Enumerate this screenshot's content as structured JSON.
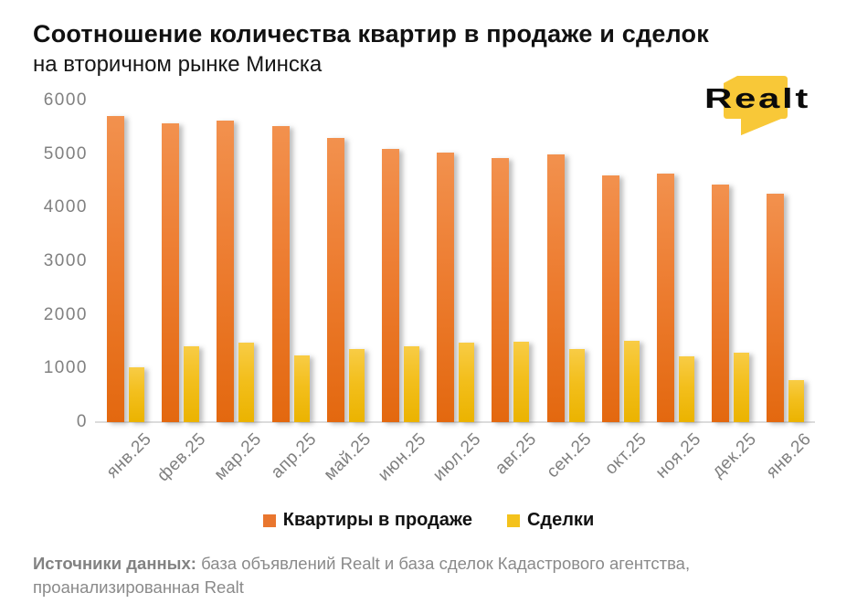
{
  "header": {
    "title": "Соотношение количества квартир в продаже и сделок",
    "subtitle": "на вторичном рынке Минска"
  },
  "logo": {
    "text": "Realt",
    "bubble_color": "#F8C838",
    "text_color": "#0b0b0b"
  },
  "chart_data": {
    "type": "bar",
    "title": "Соотношение количества квартир в продаже и сделок на вторичном рынке Минска",
    "categories": [
      "янв.25",
      "фев.25",
      "мар.25",
      "апр.25",
      "май.25",
      "июн.25",
      "июл.25",
      "авг.25",
      "сен.25",
      "окт.25",
      "ноя.25",
      "дек.25",
      "янв.26"
    ],
    "series": [
      {
        "name": "Квартиры в продаже",
        "color": "#ED7D31",
        "values": [
          5710,
          5580,
          5630,
          5520,
          5300,
          5090,
          5030,
          4920,
          4990,
          4600,
          4640,
          4430,
          4260
        ]
      },
      {
        "name": "Сделки",
        "color": "#F3BF1D",
        "values": [
          1030,
          1420,
          1480,
          1240,
          1370,
          1410,
          1480,
          1500,
          1360,
          1510,
          1220,
          1290,
          780
        ]
      }
    ],
    "xlabel": "",
    "ylabel": "",
    "ylim": [
      0,
      6000
    ],
    "yticks": [
      0,
      1000,
      2000,
      3000,
      4000,
      5000,
      6000
    ],
    "grid": false,
    "legend_position": "bottom"
  },
  "legend": {
    "items": [
      {
        "label": "Квартиры в продаже",
        "color": "#E9762E"
      },
      {
        "label": "Сделки",
        "color": "#F4C21C"
      }
    ]
  },
  "footer": {
    "label": "Источники данных:",
    "line1": " база объявлений Realt и база сделок Кадастрового агентства,",
    "line2": "проанализированная Realt"
  }
}
